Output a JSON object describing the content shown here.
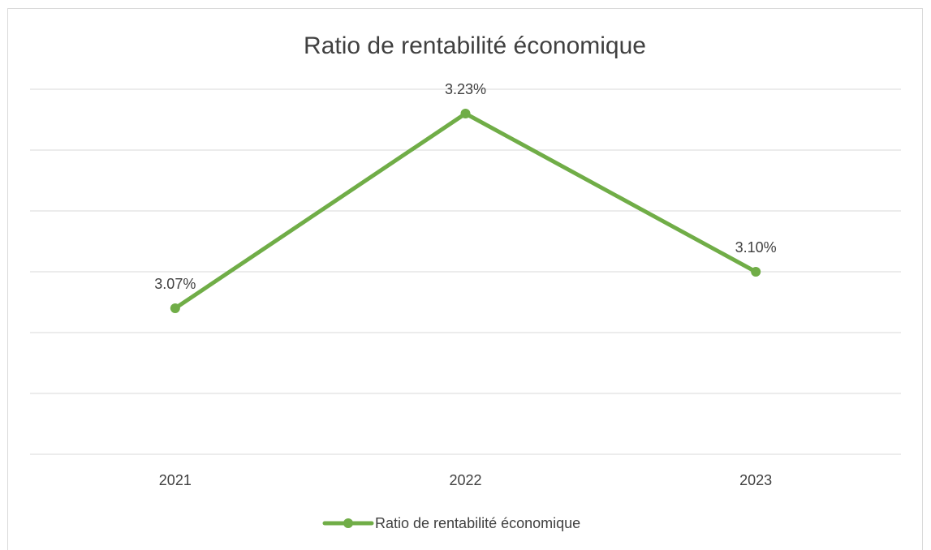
{
  "chart_data": {
    "type": "line",
    "title": "Ratio de rentabilité économique",
    "categories": [
      "2021",
      "2022",
      "2023"
    ],
    "series": [
      {
        "name": "Ratio de rentabilité économique",
        "color": "#70ad47",
        "values": [
          3.07,
          3.23,
          3.1
        ],
        "value_labels": [
          "3.07%",
          "3.23%",
          "3.10%"
        ]
      }
    ],
    "ylim": [
      2.95,
      3.25
    ],
    "yticks": [
      2.95,
      3.0,
      3.05,
      3.1,
      3.15,
      3.2,
      3.25
    ],
    "grid": true,
    "legend": "bottom"
  }
}
